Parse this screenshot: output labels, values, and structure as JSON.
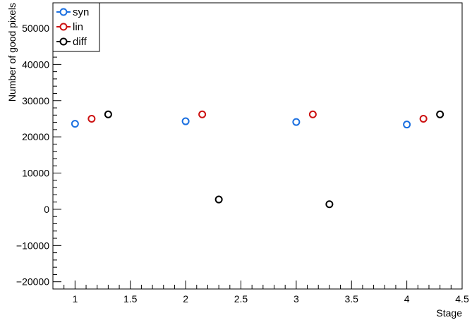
{
  "chart_data": {
    "type": "scatter",
    "title": "",
    "xlabel": "Stage",
    "ylabel": "Number of good pixels",
    "xlim": [
      0.8,
      4.5
    ],
    "ylim": [
      -22000,
      57000
    ],
    "x_ticks": [
      1,
      1.5,
      2,
      2.5,
      3,
      3.5,
      4,
      4.5
    ],
    "x_tick_labels": [
      "1",
      "1.5",
      "2",
      "2.5",
      "3",
      "3.5",
      "4",
      "4.5"
    ],
    "y_ticks": [
      -20000,
      -10000,
      0,
      10000,
      20000,
      30000,
      40000,
      50000
    ],
    "y_tick_labels": [
      "−20000",
      "−10000",
      "0",
      "10000",
      "20000",
      "30000",
      "40000",
      "50000"
    ],
    "grid": false,
    "legend_position": "top-left",
    "series": [
      {
        "name": "syn",
        "color": "#1a6fe0",
        "x": [
          1,
          2,
          3,
          4
        ],
        "y": [
          23600,
          24300,
          24100,
          23400
        ]
      },
      {
        "name": "lin",
        "color": "#cc1111",
        "x": [
          1.15,
          2.15,
          3.15,
          4.15
        ],
        "y": [
          25000,
          26200,
          26200,
          25000
        ]
      },
      {
        "name": "diff",
        "color": "#000000",
        "x": [
          1.3,
          2.3,
          3.3,
          4.3
        ],
        "y": [
          26200,
          2700,
          1400,
          26200
        ]
      }
    ]
  }
}
